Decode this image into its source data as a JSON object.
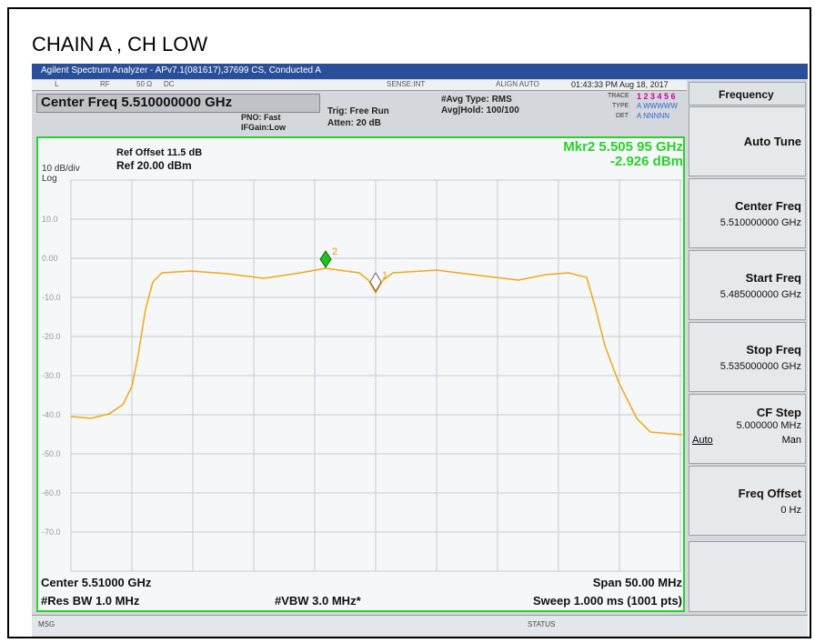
{
  "title": "CHAIN A  , CH LOW",
  "window_title": "Agilent Spectrum Analyzer - APv7.1(081617),37699 CS, Conducted A",
  "status_row": {
    "l": "L",
    "rf": "RF",
    "impedance": "50 Ω",
    "coupling": "DC",
    "sense": "SENSE:INT",
    "align": "ALIGN AUTO",
    "datetime": "01:43:33 PM Aug 18, 2017"
  },
  "settings": {
    "center_freq": "Center Freq 5.510000000 GHz",
    "pno": "PNO: Fast",
    "ifgain": "IFGain:Low",
    "trig": "Trig: Free Run",
    "atten": "Atten: 20 dB",
    "avg_type": "#Avg Type: RMS",
    "avg_hold": "Avg|Hold: 100/100",
    "trace_label": "TRACE",
    "trace_nums": "1 2 3 4 5 6",
    "type_label": "TYPE",
    "type_value": "A WWWWW",
    "det_label": "DET",
    "det_value": "A NNNNN"
  },
  "graph": {
    "ref_offset": "Ref Offset 11.5 dB",
    "ref_level": "Ref 20.00 dBm",
    "scale": "10 dB/div",
    "log": "Log",
    "marker_freq": "Mkr2 5.505 95 GHz",
    "marker_amp": "-2.926 dBm",
    "y_labels": [
      "10.0",
      "0.00",
      "-10.0",
      "-20.0",
      "-30.0",
      "-40.0",
      "-50.0",
      "-60.0",
      "-70.0"
    ],
    "markers": [
      "2",
      "1"
    ],
    "center": "Center 5.51000 GHz",
    "span": "Span 50.00 MHz",
    "rbw": "#Res BW 1.0 MHz",
    "vbw": "#VBW 3.0 MHz*",
    "sweep": "Sweep  1.000 ms (1001 pts)"
  },
  "softkeys": {
    "header": "Frequency",
    "keys": [
      {
        "label": "Auto Tune"
      },
      {
        "label": "Center Freq",
        "value": "5.510000000 GHz"
      },
      {
        "label": "Start Freq",
        "value": "5.485000000 GHz"
      },
      {
        "label": "Stop Freq",
        "value": "5.535000000 GHz"
      },
      {
        "label": "CF Step",
        "value": "5.000000 MHz",
        "options": [
          "Auto",
          "Man"
        ]
      },
      {
        "label": "Freq Offset",
        "value": "0 Hz"
      }
    ]
  },
  "footer": {
    "msg": "MSG",
    "status": "STATUS"
  }
}
